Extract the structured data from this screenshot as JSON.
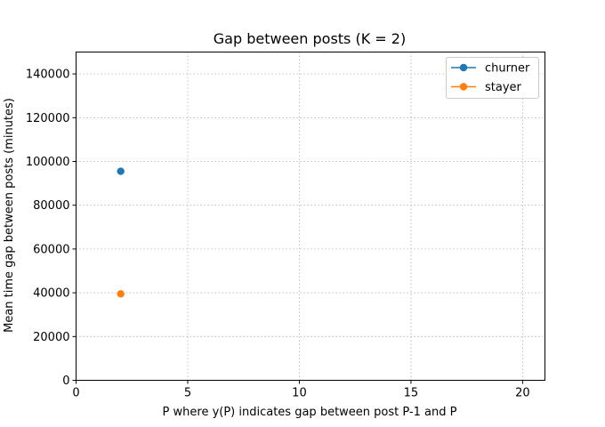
{
  "chart_data": {
    "type": "scatter",
    "title": "Gap between posts (K = 2)",
    "xlabel": "P where y(P) indicates gap between post P-1 and P",
    "ylabel": "Mean time gap between posts (minutes)",
    "xlim": [
      0,
      21
    ],
    "ylim": [
      0,
      150000
    ],
    "xticks": [
      0,
      5,
      10,
      15,
      20
    ],
    "yticks": [
      0,
      20000,
      40000,
      60000,
      80000,
      100000,
      120000,
      140000
    ],
    "grid": true,
    "legend_position": "upper right",
    "series": [
      {
        "name": "churner",
        "color": "#1f77b4",
        "x": [
          2
        ],
        "y": [
          95500
        ]
      },
      {
        "name": "stayer",
        "color": "#ff7f0e",
        "x": [
          2
        ],
        "y": [
          39500
        ]
      }
    ]
  }
}
